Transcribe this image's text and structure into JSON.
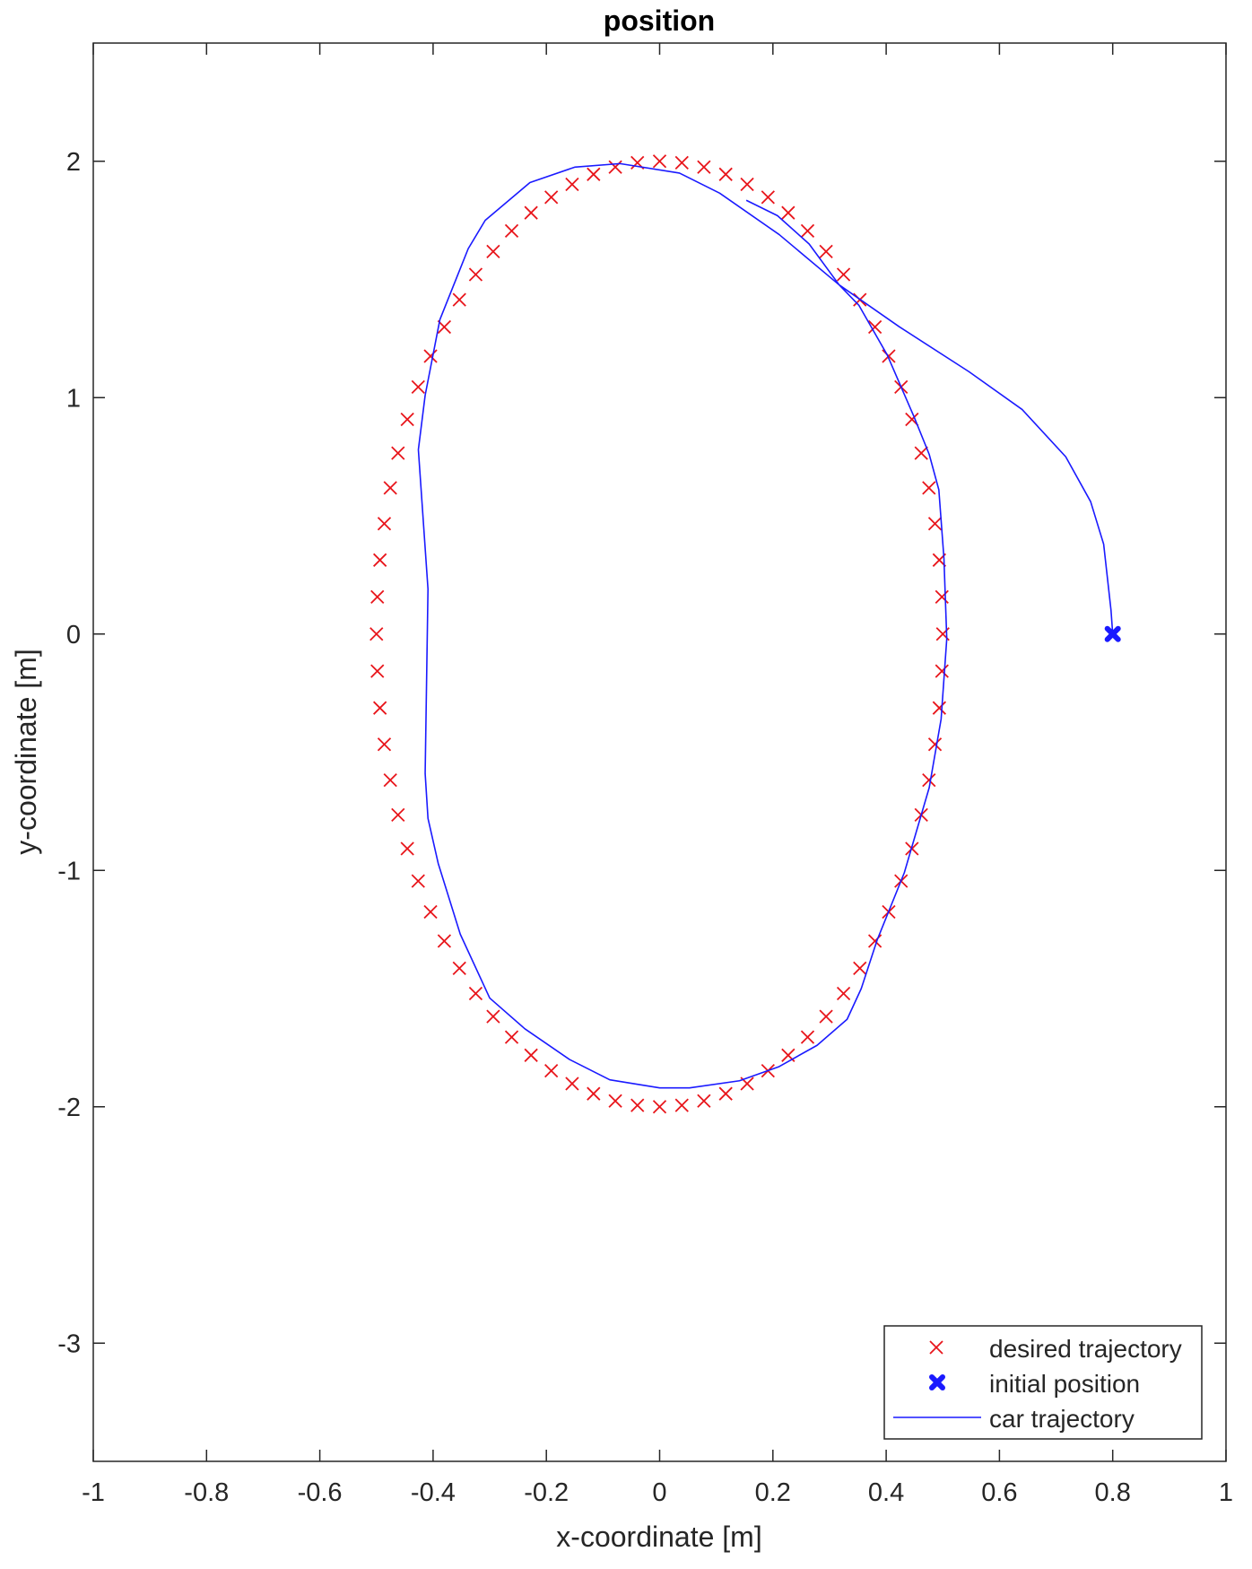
{
  "chart_data": {
    "type": "line",
    "title": "position",
    "xlabel": "x-coordinate [m]",
    "ylabel": "y-coordinate [m]",
    "xlim": [
      -1,
      1
    ],
    "ylim": [
      -3.5,
      2.5
    ],
    "xticks": [
      -1,
      -0.8,
      -0.6,
      -0.4,
      -0.2,
      0,
      0.2,
      0.4,
      0.6,
      0.8,
      1
    ],
    "yticks": [
      -3,
      -2,
      -1,
      0,
      1,
      2
    ],
    "grid": false,
    "legend_placement": "bottom-right",
    "series": [
      {
        "name": "desired trajectory",
        "kind": "markers",
        "marker": "x",
        "color": "#e8151b",
        "parametric": "x = 0.5 sin(2πk/80), y = 2 cos(2πk/80), k = 0..79"
      },
      {
        "name": "initial position",
        "kind": "marker",
        "marker": "filled-x",
        "color": "#1a1aff",
        "points": [
          [
            0.8,
            0
          ]
        ]
      },
      {
        "name": "car trajectory",
        "kind": "line",
        "color": "#1a1aff",
        "points": [
          [
            0.8,
            0
          ],
          [
            0.797,
            0.1
          ],
          [
            0.784,
            0.38
          ],
          [
            0.761,
            0.56
          ],
          [
            0.717,
            0.75
          ],
          [
            0.64,
            0.95
          ],
          [
            0.546,
            1.11
          ],
          [
            0.423,
            1.3
          ],
          [
            0.317,
            1.477
          ],
          [
            0.211,
            1.69
          ],
          [
            0.106,
            1.865
          ],
          [
            0.035,
            1.95
          ],
          [
            -0.07,
            1.99
          ],
          [
            -0.15,
            1.975
          ],
          [
            -0.229,
            1.91
          ],
          [
            -0.308,
            1.75
          ],
          [
            -0.338,
            1.63
          ],
          [
            -0.388,
            1.33
          ],
          [
            -0.414,
            1.01
          ],
          [
            -0.426,
            0.78
          ],
          [
            -0.409,
            0.19
          ],
          [
            -0.414,
            -0.59
          ],
          [
            -0.409,
            -0.78
          ],
          [
            -0.391,
            -0.97
          ],
          [
            -0.352,
            -1.27
          ],
          [
            -0.3,
            -1.54
          ],
          [
            -0.238,
            -1.67
          ],
          [
            -0.159,
            -1.8
          ],
          [
            -0.088,
            -1.886
          ],
          [
            0,
            -1.92
          ],
          [
            0.053,
            -1.92
          ],
          [
            0.141,
            -1.89
          ],
          [
            0.211,
            -1.83
          ],
          [
            0.278,
            -1.74
          ],
          [
            0.331,
            -1.63
          ],
          [
            0.356,
            -1.5
          ],
          [
            0.384,
            -1.295
          ],
          [
            0.432,
            -1.01
          ],
          [
            0.476,
            -0.65
          ],
          [
            0.497,
            -0.36
          ],
          [
            0.507,
            -0.02
          ],
          [
            0.502,
            0.32
          ],
          [
            0.493,
            0.61
          ],
          [
            0.476,
            0.76
          ],
          [
            0.449,
            0.92
          ],
          [
            0.402,
            1.18
          ],
          [
            0.352,
            1.39
          ],
          [
            0.317,
            1.477
          ],
          [
            0.264,
            1.65
          ],
          [
            0.208,
            1.77
          ],
          [
            0.153,
            1.835
          ]
        ]
      }
    ]
  }
}
